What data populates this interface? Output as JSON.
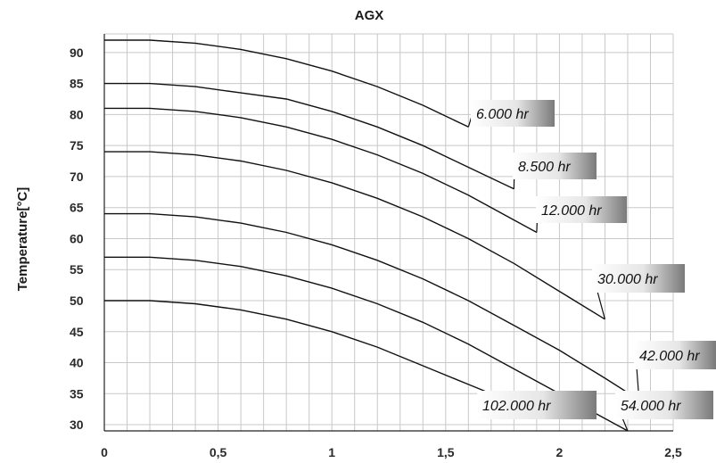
{
  "chart_data": {
    "type": "line",
    "title": "AGX",
    "ylabel": "Temperature[°C]",
    "xlabel": "",
    "xlim": [
      0,
      2.5
    ],
    "ylim": [
      29,
      93
    ],
    "x_ticks": [
      "0",
      "0,5",
      "1",
      "1,5",
      "2",
      "2,5"
    ],
    "y_ticks": [
      "90",
      "85",
      "80",
      "75",
      "70",
      "65",
      "60",
      "55",
      "50",
      "45",
      "40",
      "35",
      "30"
    ],
    "grid": true,
    "series": [
      {
        "name": "6.000 hr",
        "x": [
          0,
          0.2,
          0.4,
          0.6,
          0.8,
          1.0,
          1.2,
          1.4,
          1.6
        ],
        "y": [
          92,
          92,
          91.5,
          90.5,
          89,
          87,
          84.5,
          81.5,
          78
        ]
      },
      {
        "name": "8.500 hr",
        "x": [
          0,
          0.2,
          0.4,
          0.6,
          0.8,
          1.0,
          1.2,
          1.4,
          1.6,
          1.8
        ],
        "y": [
          85,
          85,
          84.5,
          83.5,
          82.5,
          80.5,
          78,
          75,
          71.5,
          68
        ]
      },
      {
        "name": "12.000 hr",
        "x": [
          0,
          0.2,
          0.4,
          0.6,
          0.8,
          1.0,
          1.2,
          1.4,
          1.6,
          1.8,
          1.9
        ],
        "y": [
          81,
          81,
          80.5,
          79.5,
          78,
          76,
          73.5,
          70.5,
          67,
          63,
          61
        ]
      },
      {
        "name": "30.000 hr",
        "x": [
          0,
          0.2,
          0.4,
          0.6,
          0.8,
          1.0,
          1.2,
          1.4,
          1.6,
          1.8,
          2.0,
          2.2
        ],
        "y": [
          74,
          74,
          73.5,
          72.5,
          71,
          69,
          66.5,
          63.5,
          60,
          56,
          51.5,
          47
        ]
      },
      {
        "name": "42.000 hr",
        "x": [
          0,
          0.2,
          0.4,
          0.6,
          0.8,
          1.0,
          1.2,
          1.4,
          1.6,
          1.8,
          2.0,
          2.2,
          2.35
        ],
        "y": [
          64,
          64,
          63.5,
          62.5,
          61,
          59,
          56.5,
          53.5,
          50,
          46,
          42,
          37.5,
          34
        ]
      },
      {
        "name": "54.000 hr",
        "x": [
          0,
          0.2,
          0.4,
          0.6,
          0.8,
          1.0,
          1.2,
          1.4,
          1.6,
          1.8,
          2.0,
          2.2,
          2.3
        ],
        "y": [
          57,
          57,
          56.5,
          55.5,
          54,
          52,
          49.5,
          46.5,
          43,
          39,
          35,
          31,
          29
        ]
      },
      {
        "name": "102.000 hr",
        "x": [
          0,
          0.2,
          0.4,
          0.6,
          0.8,
          1.0,
          1.2,
          1.4,
          1.6,
          1.8,
          1.9
        ],
        "y": [
          50,
          50,
          49.5,
          48.5,
          47,
          45,
          42.5,
          39.5,
          36.5,
          33.5,
          31.5
        ]
      }
    ],
    "colors": {
      "line": "#111111",
      "grid": "#c8c8c8",
      "label_box_start": "#ffffff",
      "label_box_end": "#7a7a7a"
    }
  }
}
